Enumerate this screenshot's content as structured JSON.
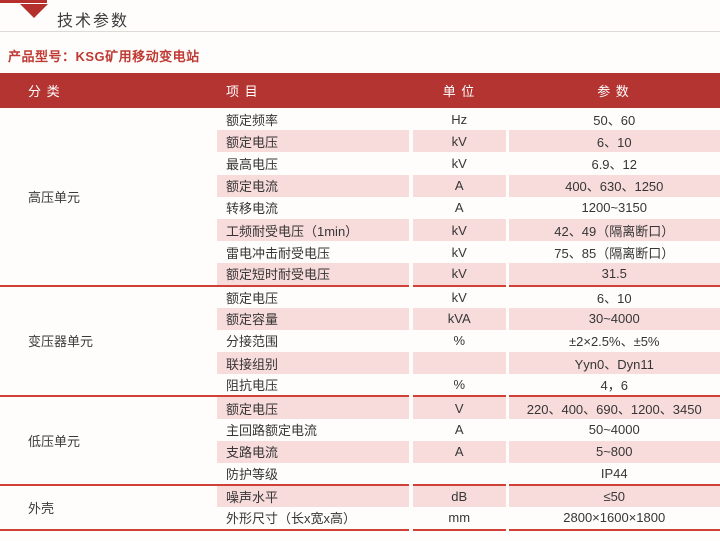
{
  "page": {
    "title": "技术参数",
    "subtitle": "产品型号：KSG矿用移动变电站"
  },
  "colors": {
    "header_red": "#b43432",
    "accent_red": "#b5302c",
    "separator_red": "#cf4136",
    "row_pink": "#f8dbdb",
    "subtitle_red": "#bf3a34"
  },
  "icons": {
    "section_marker": "triangle-down"
  },
  "table": {
    "headers": {
      "category": "分 类",
      "item": "项 目",
      "unit": "单 位",
      "param": "参 数"
    },
    "sections": [
      {
        "category": "高压单元",
        "rows": [
          {
            "item": "额定频率",
            "unit": "Hz",
            "value": "50、60"
          },
          {
            "item": "额定电压",
            "unit": "kV",
            "value": "6、10"
          },
          {
            "item": "最高电压",
            "unit": "kV",
            "value": "6.9、12"
          },
          {
            "item": "额定电流",
            "unit": "A",
            "value": "400、630、1250"
          },
          {
            "item": "转移电流",
            "unit": "A",
            "value": "1200~3150"
          },
          {
            "item": "工频耐受电压（1min）",
            "unit": "kV",
            "value": "42、49（隔离断口）"
          },
          {
            "item": "雷电冲击耐受电压",
            "unit": "kV",
            "value": "75、85（隔离断口）"
          },
          {
            "item": "额定短时耐受电压",
            "unit": "kV",
            "value": "31.5"
          }
        ]
      },
      {
        "category": "变压器单元",
        "rows": [
          {
            "item": "额定电压",
            "unit": "kV",
            "value": "6、10"
          },
          {
            "item": "额定容量",
            "unit": "kVA",
            "value": "30~4000"
          },
          {
            "item": "分接范围",
            "unit": "%",
            "value": "±2×2.5%、±5%"
          },
          {
            "item": "联接组别",
            "unit": "",
            "value": "Yyn0、Dyn11"
          },
          {
            "item": "阻抗电压",
            "unit": "%",
            "value": "4，6"
          }
        ]
      },
      {
        "category": "低压单元",
        "rows": [
          {
            "item": "额定电压",
            "unit": "V",
            "value": "220、400、690、1200、3450"
          },
          {
            "item": "主回路额定电流",
            "unit": "A",
            "value": "50~4000"
          },
          {
            "item": "支路电流",
            "unit": "A",
            "value": "5~800"
          },
          {
            "item": "防护等级",
            "unit": "",
            "value": "IP44"
          }
        ]
      },
      {
        "category": "外壳",
        "rows": [
          {
            "item": "噪声水平",
            "unit": "dB",
            "value": "≤50"
          },
          {
            "item": "外形尺寸（长x宽x高）",
            "unit": "mm",
            "value": "2800×1600×1800"
          }
        ]
      }
    ]
  }
}
